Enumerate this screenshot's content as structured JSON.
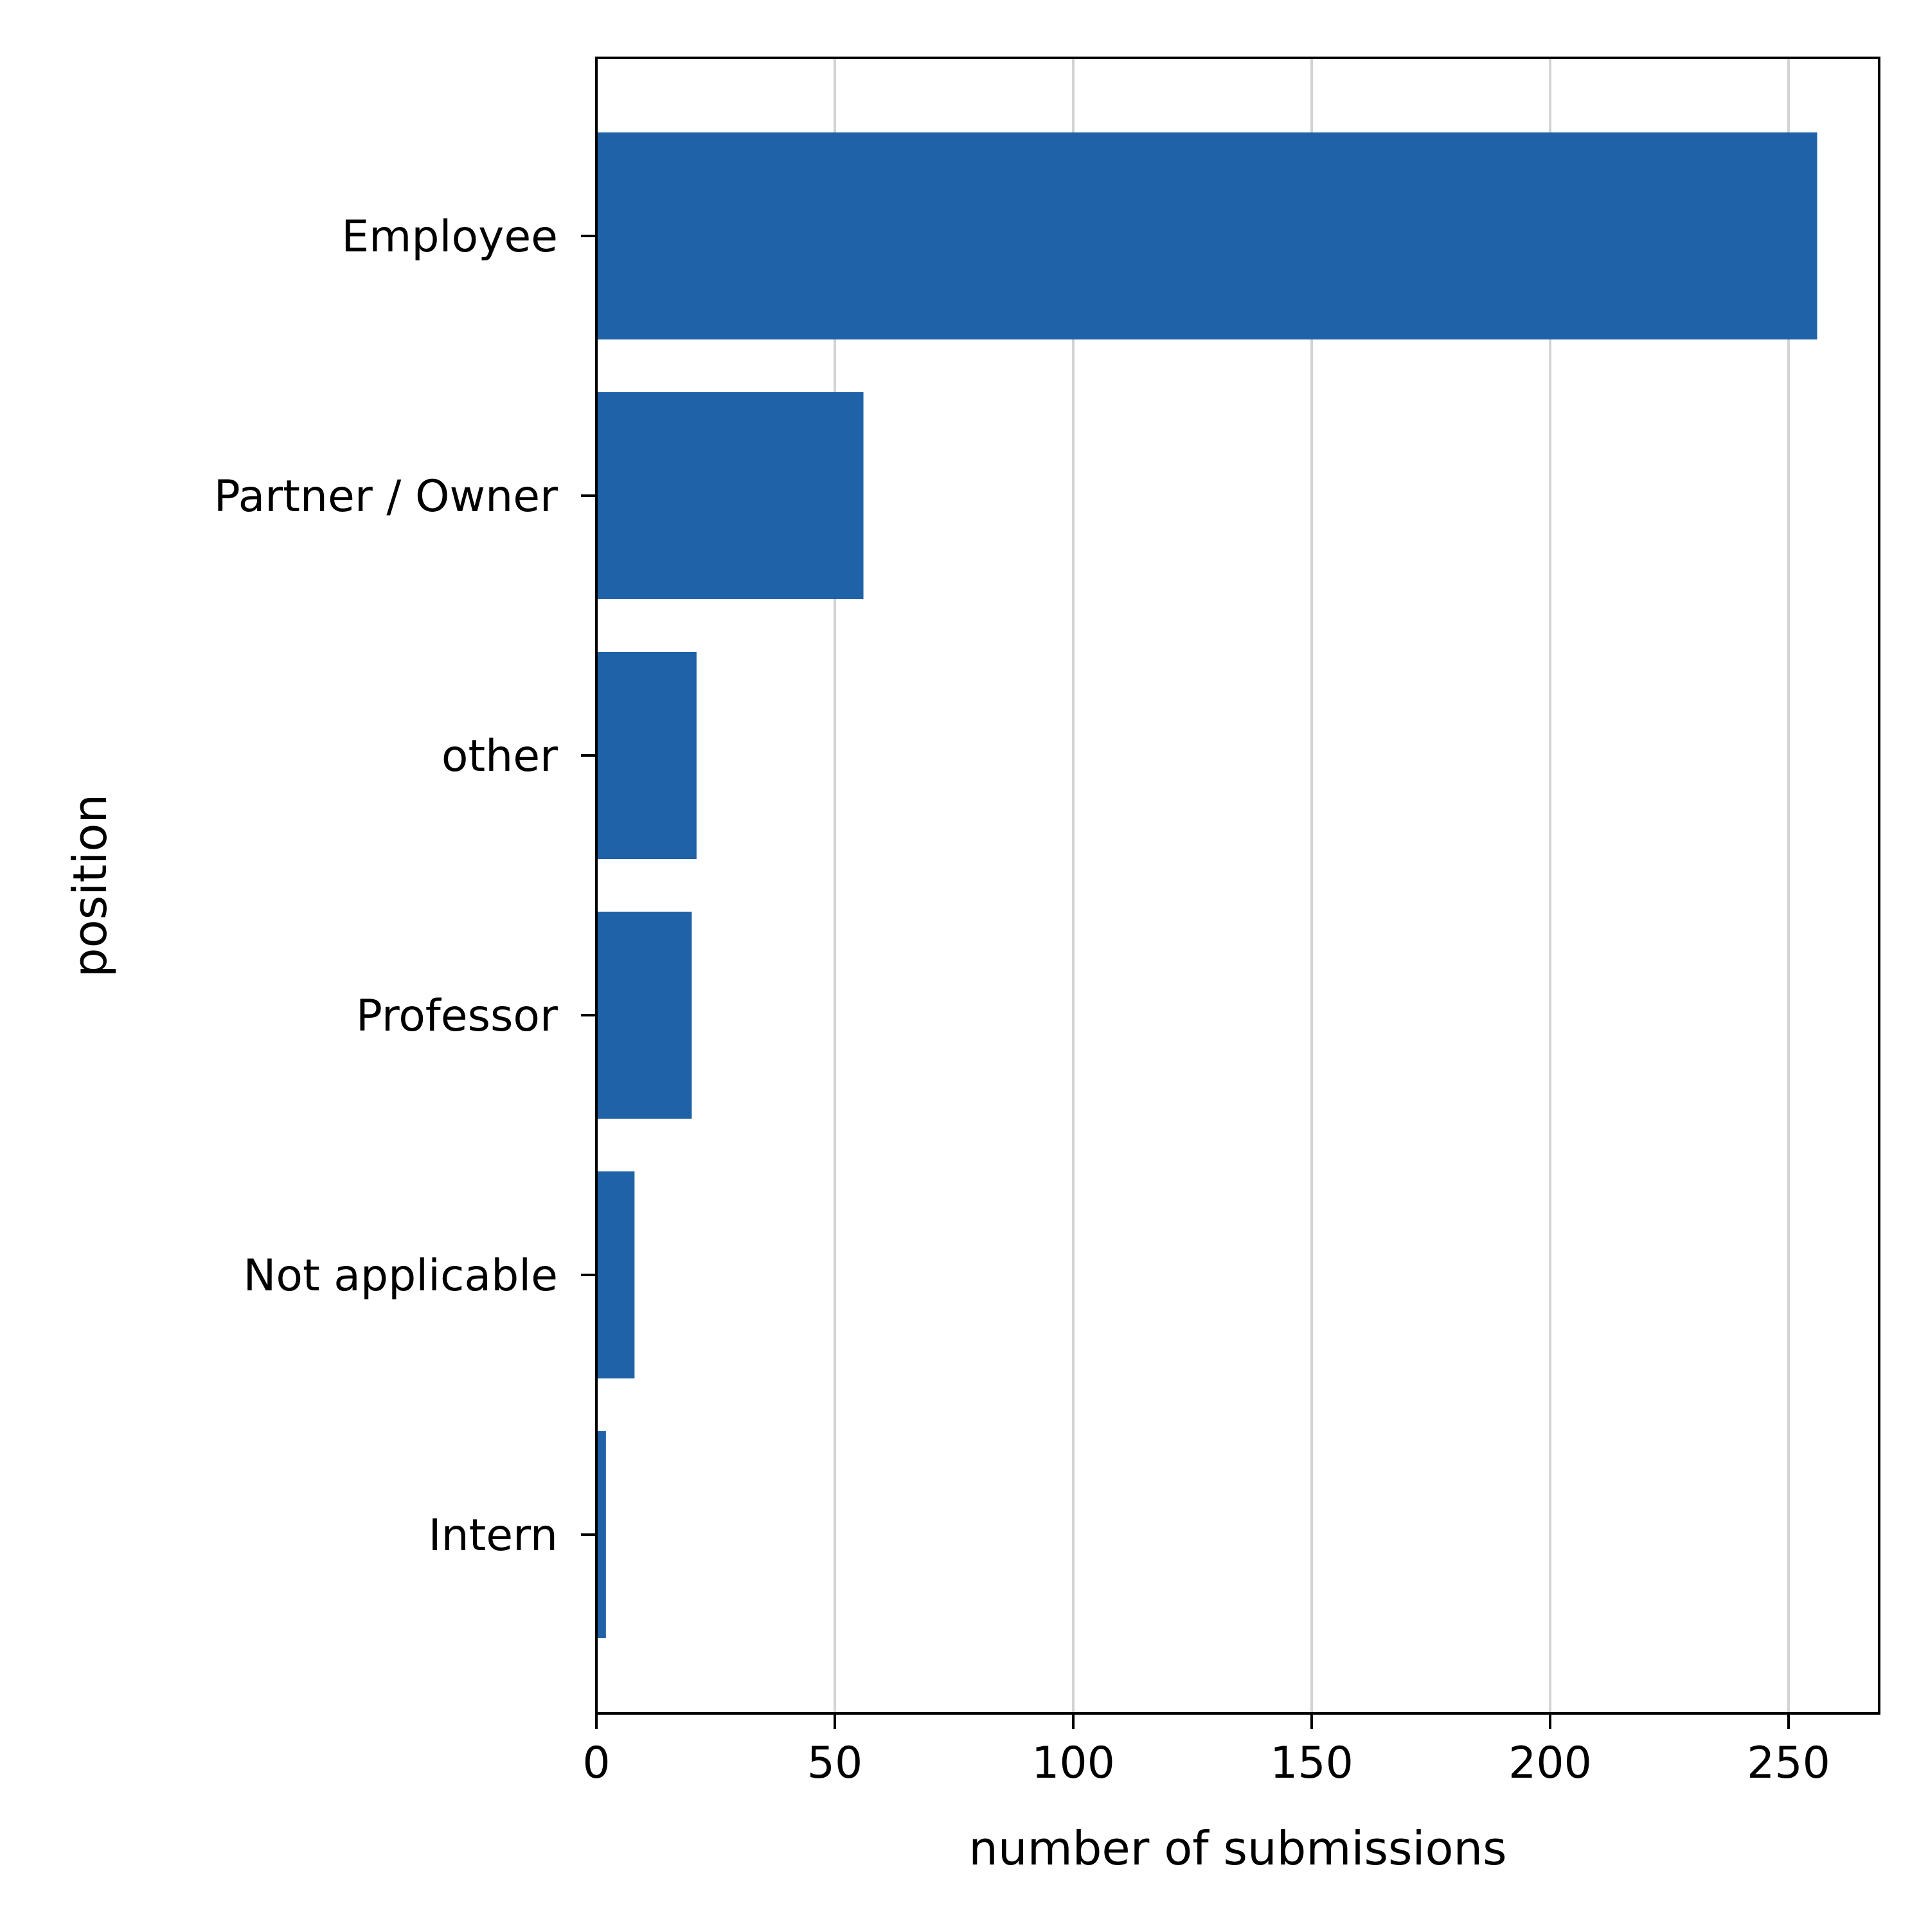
{
  "chart_data": {
    "type": "bar",
    "orientation": "horizontal",
    "categories": [
      "Employee",
      "Partner / Owner",
      "other",
      "Professor",
      "Not applicable",
      "Intern"
    ],
    "values": [
      256,
      56,
      21,
      20,
      8,
      2
    ],
    "xlabel": "number of submissions",
    "ylabel": "position",
    "xlim": [
      0,
      269
    ],
    "xticks": [
      0,
      50,
      100,
      150,
      200,
      250
    ],
    "grid": "x",
    "bar_color": "#1f62a7"
  }
}
